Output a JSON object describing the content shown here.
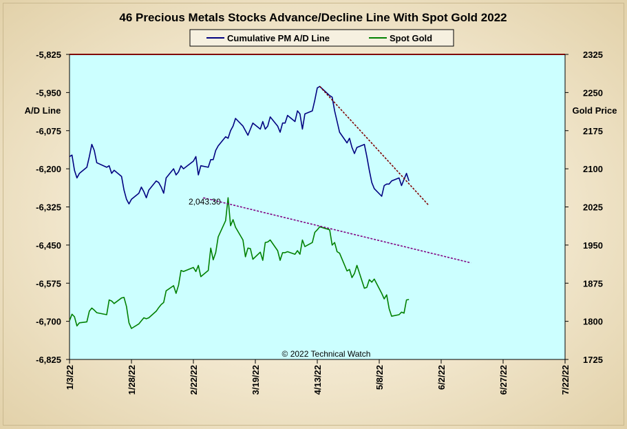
{
  "chart_data": {
    "type": "line",
    "title": "46 Precious Metals Stocks Advance/Decline Line With Spot Gold 2022",
    "ylabel_left": "A/D Line",
    "ylabel_right": "Gold Price",
    "y_left_ticks": [
      "-5,825",
      "-5,950",
      "-6,075",
      "-6,200",
      "-6,325",
      "-6,450",
      "-6,575",
      "-6,700",
      "-6,825"
    ],
    "y_right_ticks": [
      "2325",
      "2250",
      "2175",
      "2100",
      "2025",
      "1950",
      "1875",
      "1800",
      "1725"
    ],
    "ylim_left": [
      -6825,
      -5825
    ],
    "ylim_right": [
      1725,
      2325
    ],
    "x_ticks": [
      "1/3/22",
      "1/28/22",
      "2/22/22",
      "3/19/22",
      "4/13/22",
      "5/8/22",
      "6/2/22",
      "6/27/22",
      "7/22/22"
    ],
    "x_start": "2022-01-03",
    "x_end": "2022-07-22",
    "background": "#ccffff",
    "grid": false,
    "legend_position": "top-center",
    "series": [
      {
        "name": "Cumulative PM A/D Line",
        "axis": "left",
        "color": "#000080",
        "x": [
          "2022-01-03",
          "2022-01-04",
          "2022-01-05",
          "2022-01-06",
          "2022-01-07",
          "2022-01-10",
          "2022-01-11",
          "2022-01-12",
          "2022-01-13",
          "2022-01-14",
          "2022-01-18",
          "2022-01-19",
          "2022-01-20",
          "2022-01-21",
          "2022-01-24",
          "2022-01-25",
          "2022-01-26",
          "2022-01-27",
          "2022-01-28",
          "2022-01-31",
          "2022-02-01",
          "2022-02-02",
          "2022-02-03",
          "2022-02-04",
          "2022-02-07",
          "2022-02-08",
          "2022-02-09",
          "2022-02-10",
          "2022-02-11",
          "2022-02-14",
          "2022-02-15",
          "2022-02-16",
          "2022-02-17",
          "2022-02-18",
          "2022-02-22",
          "2022-02-23",
          "2022-02-24",
          "2022-02-25",
          "2022-02-28",
          "2022-03-01",
          "2022-03-02",
          "2022-03-03",
          "2022-03-04",
          "2022-03-07",
          "2022-03-08",
          "2022-03-09",
          "2022-03-10",
          "2022-03-11",
          "2022-03-14",
          "2022-03-15",
          "2022-03-16",
          "2022-03-17",
          "2022-03-18",
          "2022-03-21",
          "2022-03-22",
          "2022-03-23",
          "2022-03-24",
          "2022-03-25",
          "2022-03-28",
          "2022-03-29",
          "2022-03-30",
          "2022-03-31",
          "2022-04-01",
          "2022-04-04",
          "2022-04-05",
          "2022-04-06",
          "2022-04-07",
          "2022-04-08",
          "2022-04-11",
          "2022-04-12",
          "2022-04-13",
          "2022-04-14",
          "2022-04-18",
          "2022-04-19",
          "2022-04-20",
          "2022-04-21",
          "2022-04-22",
          "2022-04-25",
          "2022-04-26",
          "2022-04-27",
          "2022-04-28",
          "2022-04-29",
          "2022-05-02",
          "2022-05-03",
          "2022-05-04",
          "2022-05-05",
          "2022-05-06",
          "2022-05-09",
          "2022-05-10",
          "2022-05-11",
          "2022-05-12",
          "2022-05-13",
          "2022-05-16",
          "2022-05-17",
          "2022-05-18",
          "2022-05-19",
          "2022-05-20"
        ],
        "y": [
          -6160,
          -6155,
          -6205,
          -6230,
          -6215,
          -6195,
          -6160,
          -6120,
          -6140,
          -6180,
          -6195,
          -6190,
          -6215,
          -6205,
          -6225,
          -6270,
          -6300,
          -6315,
          -6300,
          -6280,
          -6260,
          -6275,
          -6295,
          -6270,
          -6240,
          -6245,
          -6260,
          -6280,
          -6230,
          -6200,
          -6220,
          -6210,
          -6190,
          -6200,
          -6175,
          -6160,
          -6220,
          -6190,
          -6195,
          -6170,
          -6170,
          -6140,
          -6125,
          -6095,
          -6100,
          -6075,
          -6060,
          -6035,
          -6060,
          -6075,
          -6090,
          -6070,
          -6050,
          -6070,
          -6045,
          -6070,
          -6060,
          -6030,
          -6060,
          -6080,
          -6050,
          -6050,
          -6025,
          -6045,
          -6010,
          -6020,
          -6070,
          -6020,
          -6010,
          -5975,
          -5935,
          -5930,
          -5960,
          -5965,
          -6010,
          -6045,
          -6080,
          -6115,
          -6100,
          -6130,
          -6150,
          -6130,
          -6120,
          -6160,
          -6205,
          -6245,
          -6265,
          -6290,
          -6255,
          -6250,
          -6250,
          -6240,
          -6230,
          -6255,
          -6235,
          -6215,
          -6240
        ]
      },
      {
        "name": "Spot Gold",
        "axis": "right",
        "color": "#008000",
        "x": [
          "2022-01-03",
          "2022-01-04",
          "2022-01-05",
          "2022-01-06",
          "2022-01-07",
          "2022-01-10",
          "2022-01-11",
          "2022-01-12",
          "2022-01-13",
          "2022-01-14",
          "2022-01-18",
          "2022-01-19",
          "2022-01-20",
          "2022-01-21",
          "2022-01-24",
          "2022-01-25",
          "2022-01-26",
          "2022-01-27",
          "2022-01-28",
          "2022-01-31",
          "2022-02-01",
          "2022-02-02",
          "2022-02-03",
          "2022-02-04",
          "2022-02-07",
          "2022-02-08",
          "2022-02-09",
          "2022-02-10",
          "2022-02-11",
          "2022-02-14",
          "2022-02-15",
          "2022-02-16",
          "2022-02-17",
          "2022-02-18",
          "2022-02-22",
          "2022-02-23",
          "2022-02-24",
          "2022-02-25",
          "2022-02-28",
          "2022-03-01",
          "2022-03-02",
          "2022-03-03",
          "2022-03-04",
          "2022-03-07",
          "2022-03-08",
          "2022-03-09",
          "2022-03-10",
          "2022-03-11",
          "2022-03-14",
          "2022-03-15",
          "2022-03-16",
          "2022-03-17",
          "2022-03-18",
          "2022-03-21",
          "2022-03-22",
          "2022-03-23",
          "2022-03-24",
          "2022-03-25",
          "2022-03-28",
          "2022-03-29",
          "2022-03-30",
          "2022-03-31",
          "2022-04-01",
          "2022-04-04",
          "2022-04-05",
          "2022-04-06",
          "2022-04-07",
          "2022-04-08",
          "2022-04-11",
          "2022-04-12",
          "2022-04-13",
          "2022-04-14",
          "2022-04-18",
          "2022-04-19",
          "2022-04-20",
          "2022-04-21",
          "2022-04-22",
          "2022-04-25",
          "2022-04-26",
          "2022-04-27",
          "2022-04-28",
          "2022-04-29",
          "2022-05-02",
          "2022-05-03",
          "2022-05-04",
          "2022-05-05",
          "2022-05-06",
          "2022-05-09",
          "2022-05-10",
          "2022-05-11",
          "2022-05-12",
          "2022-05-13",
          "2022-05-16",
          "2022-05-17",
          "2022-05-18",
          "2022-05-19",
          "2022-05-20"
        ],
        "y": [
          1801,
          1814,
          1809,
          1791,
          1797,
          1799,
          1820,
          1826,
          1822,
          1817,
          1813,
          1842,
          1840,
          1835,
          1846,
          1847,
          1829,
          1797,
          1786,
          1795,
          1801,
          1807,
          1805,
          1807,
          1820,
          1827,
          1833,
          1837,
          1860,
          1870,
          1855,
          1871,
          1900,
          1898,
          1906,
          1898,
          1910,
          1888,
          1900,
          1944,
          1921,
          1935,
          1966,
          1998,
          2043,
          1988,
          2000,
          1985,
          1960,
          1927,
          1944,
          1943,
          1922,
          1936,
          1920,
          1955,
          1956,
          1960,
          1939,
          1920,
          1935,
          1935,
          1937,
          1932,
          1939,
          1932,
          1960,
          1947,
          1955,
          1975,
          1980,
          1986,
          1980,
          1950,
          1955,
          1937,
          1934,
          1899,
          1902,
          1886,
          1894,
          1910,
          1865,
          1867,
          1882,
          1877,
          1883,
          1855,
          1844,
          1852,
          1825,
          1810,
          1813,
          1818,
          1816,
          1842,
          1843
        ]
      }
    ],
    "annotations": [
      {
        "text": "2,043.30"
      },
      {
        "text": "© 2022 Technical Watch"
      }
    ],
    "trendlines": [
      {
        "axis": "left",
        "color": "#800000",
        "from": [
          "2022-04-14",
          -5930
        ],
        "to": [
          "2022-05-28",
          -6320
        ]
      },
      {
        "axis": "right",
        "color": "#800080",
        "from": [
          "2022-02-26",
          2043
        ],
        "to": [
          "2022-06-14",
          1915
        ]
      }
    ]
  }
}
